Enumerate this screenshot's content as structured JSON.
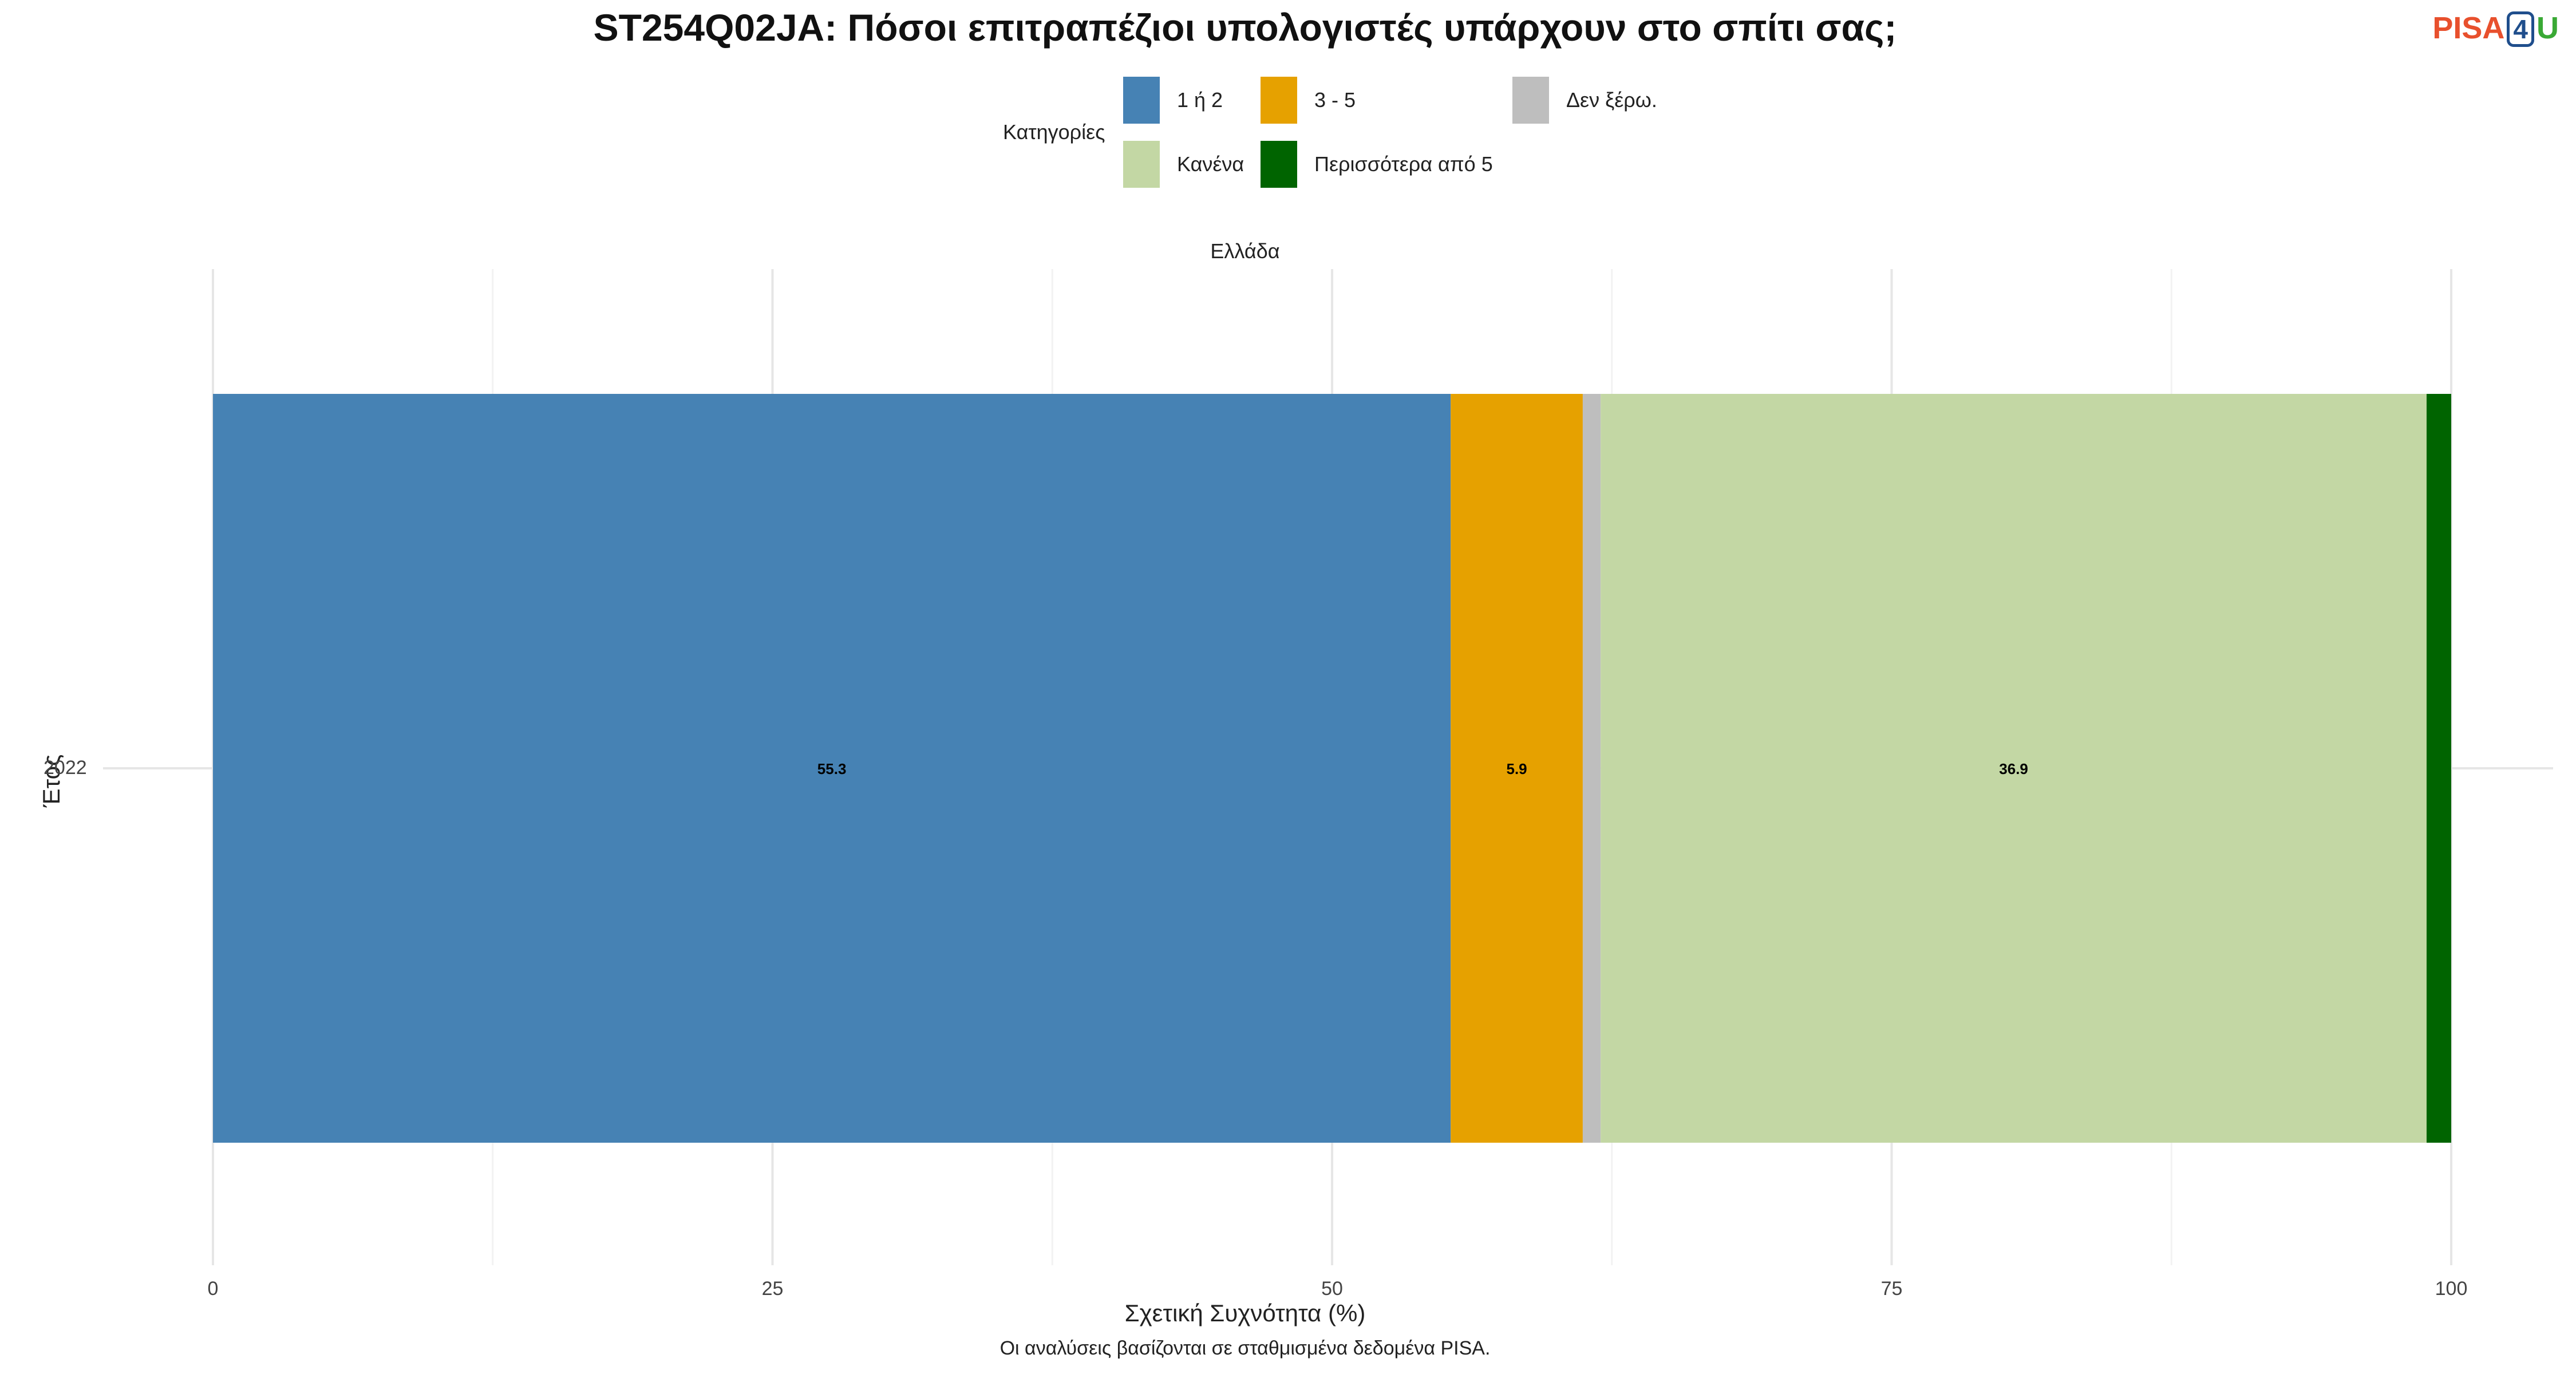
{
  "title": "ST254Q02JA: Πόσοι επιτραπέζιοι υπολογιστές υπάρχουν στο σπίτι σας;",
  "logo": {
    "pisa": "PISA",
    "four": "4",
    "u": "U"
  },
  "legend": {
    "title": "Κατηγορίες",
    "items": [
      {
        "label": "1 ή 2",
        "color": "#4682b4"
      },
      {
        "label": "3 - 5",
        "color": "#e6a100"
      },
      {
        "label": "Δεν ξέρω.",
        "color": "#bebebe"
      },
      {
        "label": "Κανένα",
        "color": "#c3d7a4"
      },
      {
        "label": "Περισσότερα από 5",
        "color": "#006400"
      }
    ]
  },
  "facet_label": "Ελλάδα",
  "chart_data": {
    "type": "bar",
    "orientation": "horizontal",
    "stacked": true,
    "categories": [
      "2022"
    ],
    "series": [
      {
        "name": "1 ή 2",
        "values": [
          55.3
        ],
        "color": "#4682b4",
        "label": "55.3"
      },
      {
        "name": "3 - 5",
        "values": [
          5.9
        ],
        "color": "#e6a100",
        "label": "5.9"
      },
      {
        "name": "Δεν ξέρω.",
        "values": [
          0.8
        ],
        "color": "#bebebe",
        "label": ""
      },
      {
        "name": "Κανένα",
        "values": [
          36.9
        ],
        "color": "#c3d7a4",
        "label": "36.9"
      },
      {
        "name": "Περισσότερα από 5",
        "values": [
          1.1
        ],
        "color": "#006400",
        "label": ""
      }
    ],
    "xlabel": "Σχετική Συχνότητα (%)",
    "ylabel": "Έτος",
    "xlim": [
      0,
      100
    ],
    "xticks": [
      0,
      25,
      50,
      75,
      100
    ],
    "grid": true,
    "legend_position": "top"
  },
  "caption": "Οι αναλύσεις βασίζονται σε σταθμισμένα δεδομένα PISA."
}
